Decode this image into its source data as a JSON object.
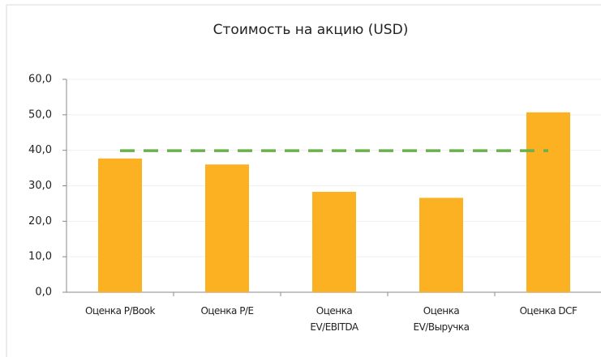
{
  "chart_data": {
    "type": "bar",
    "title": "Стоимость на акцию (USD)",
    "categories": [
      "Оценка P/Book",
      "Оценка P/E",
      "Оценка\nEV/EBITDA",
      "Оценка\nEV/Выручка",
      "Оценка DCF"
    ],
    "series": [
      {
        "type": "bar",
        "color": "#fbb122",
        "values": [
          37.7,
          36.0,
          28.3,
          26.6,
          50.7
        ]
      },
      {
        "type": "line",
        "color": "#6ab04c",
        "dashed": true,
        "values": [
          39.9,
          39.9,
          39.9,
          39.9,
          39.9
        ]
      }
    ],
    "ylim": [
      0,
      60
    ],
    "yticks": [
      {
        "value": 0,
        "label": "0,0"
      },
      {
        "value": 10,
        "label": "10,0"
      },
      {
        "value": 20,
        "label": "20,0"
      },
      {
        "value": 30,
        "label": "30,0"
      },
      {
        "value": 40,
        "label": "40,0"
      },
      {
        "value": 50,
        "label": "50,0"
      },
      {
        "value": 60,
        "label": "60,0"
      }
    ],
    "grid": true
  }
}
